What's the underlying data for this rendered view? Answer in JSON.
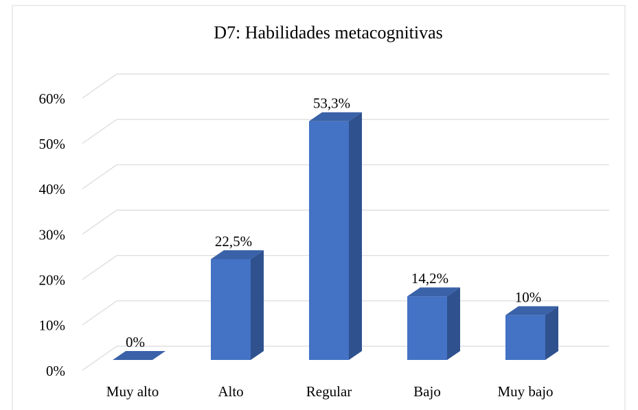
{
  "chart_data": {
    "type": "bar3d",
    "title": "D7: Habilidades metacognitivas",
    "categories": [
      "Muy alto",
      "Alto",
      "Regular",
      "Bajo",
      "Muy bajo"
    ],
    "values": [
      0,
      22.5,
      53.3,
      14.2,
      10
    ],
    "value_labels": [
      "0%",
      "22,5%",
      "53,3%",
      "14,2%",
      "10%"
    ],
    "color": "#4472c4",
    "ylim": [
      0,
      60
    ],
    "yticks": [
      {
        "value": 0,
        "label": "0%"
      },
      {
        "value": 10,
        "label": "10%"
      },
      {
        "value": 20,
        "label": "20%"
      },
      {
        "value": 30,
        "label": "30%"
      },
      {
        "value": 40,
        "label": "40%"
      },
      {
        "value": 50,
        "label": "50%"
      },
      {
        "value": 60,
        "label": "60%"
      }
    ],
    "grid": true
  }
}
